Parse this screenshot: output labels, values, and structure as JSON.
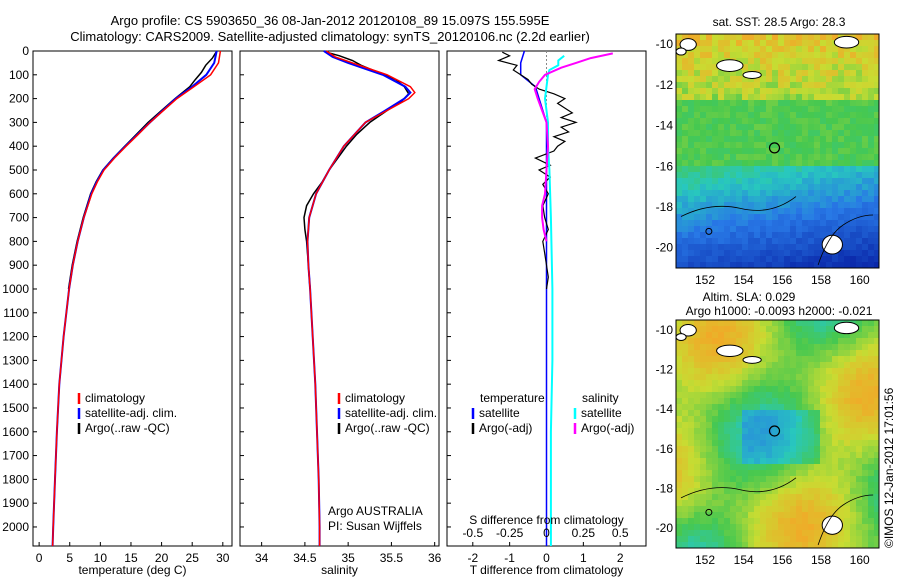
{
  "header": {
    "line1": "Argo profile: CS 5903650_36 08-Jan-2012 20120108_89 15.097S 155.595E",
    "line2": "Climatology: CARS2009. Satellite-adjusted climatology: synTS_20120106.nc (2.2d earlier)"
  },
  "colors": {
    "climatology": "#ff0000",
    "satellite": "#0000ff",
    "argo": "#000000",
    "satellite_sal": "#00ffff",
    "argo_sal": "#ff00ff"
  },
  "chart_data": [
    {
      "type": "line",
      "title": "",
      "xlabel": "temperature (deg C)",
      "ylabel": "",
      "xlim": [
        -1,
        31.5
      ],
      "ylim": [
        2080,
        0
      ],
      "xticks": [
        0,
        5,
        10,
        15,
        20,
        25,
        30
      ],
      "yticks": [
        0,
        100,
        200,
        300,
        400,
        500,
        600,
        700,
        800,
        900,
        1000,
        1100,
        1200,
        1300,
        1400,
        1500,
        1600,
        1700,
        1800,
        1900,
        2000
      ],
      "legend": [
        "climatology",
        "satellite-adj. clim.",
        "Argo(..raw -QC)"
      ],
      "series": [
        {
          "name": "climatology",
          "depth": [
            0,
            50,
            100,
            150,
            200,
            250,
            300,
            350,
            400,
            450,
            500,
            550,
            600,
            700,
            800,
            900,
            1000,
            1200,
            1400,
            1600,
            1800,
            2000,
            2080
          ],
          "values": [
            29.6,
            29.3,
            28.0,
            25.3,
            22.5,
            20.3,
            18.1,
            16.2,
            14.2,
            12.3,
            10.6,
            9.5,
            8.6,
            7.3,
            6.3,
            5.5,
            4.9,
            4.0,
            3.3,
            2.9,
            2.6,
            2.3,
            2.2
          ]
        },
        {
          "name": "satellite-adj. clim.",
          "depth": [
            0,
            50,
            100,
            150,
            200,
            250,
            300,
            350,
            400,
            450,
            500,
            550,
            600,
            700,
            800,
            900,
            1000,
            1200,
            1400,
            1600,
            1800,
            2000,
            2080
          ],
          "values": [
            29.0,
            28.6,
            27.3,
            25.0,
            22.3,
            20.2,
            18.1,
            16.1,
            14.1,
            12.2,
            10.5,
            9.4,
            8.5,
            7.3,
            6.3,
            5.5,
            4.9,
            4.0,
            3.3,
            2.9,
            2.6,
            2.3,
            2.2
          ]
        },
        {
          "name": "Argo(..raw -QC)",
          "depth": [
            5,
            30,
            60,
            90,
            120,
            150,
            200,
            250,
            300,
            350,
            400,
            450,
            500,
            550,
            600,
            650,
            700,
            800,
            900,
            1000
          ],
          "values": [
            28.9,
            28.3,
            27.2,
            26.5,
            25.5,
            24.6,
            22.2,
            20.0,
            17.8,
            15.9,
            14.0,
            12.1,
            10.4,
            9.3,
            8.4,
            7.8,
            7.2,
            6.2,
            5.4,
            4.8
          ]
        }
      ],
      "texts": []
    },
    {
      "type": "line",
      "xlabel": "salinity",
      "xlim": [
        33.75,
        36.05
      ],
      "ylim": [
        2080,
        0
      ],
      "xticks": [
        34,
        34.5,
        35,
        35.5,
        36
      ],
      "legend": [
        "climatology",
        "satellite-adj. clim.",
        "Argo(..raw -QC)"
      ],
      "series": [
        {
          "name": "climatology",
          "depth": [
            0,
            25,
            50,
            100,
            150,
            175,
            200,
            250,
            300,
            400,
            500,
            600,
            700,
            800,
            900,
            1000,
            1200,
            1400,
            1600,
            1800,
            2000,
            2080
          ],
          "values": [
            34.75,
            34.85,
            35.05,
            35.45,
            35.72,
            35.77,
            35.7,
            35.45,
            35.2,
            34.95,
            34.78,
            34.63,
            34.55,
            34.53,
            34.54,
            34.56,
            34.59,
            34.62,
            34.64,
            34.66,
            34.67,
            34.67
          ]
        },
        {
          "name": "satellite-adj. clim.",
          "depth": [
            0,
            25,
            50,
            100,
            150,
            175,
            200,
            250,
            300,
            400,
            500,
            600,
            700,
            800,
            900,
            1000,
            1200,
            1400,
            1600,
            1800,
            2000,
            2080
          ],
          "values": [
            34.72,
            34.82,
            35.0,
            35.4,
            35.66,
            35.72,
            35.65,
            35.43,
            35.2,
            34.95,
            34.78,
            34.63,
            34.55,
            34.53,
            34.54,
            34.56,
            34.59,
            34.62,
            34.64,
            34.66,
            34.67,
            34.67
          ]
        },
        {
          "name": "Argo(..raw -QC)",
          "depth": [
            5,
            20,
            40,
            60,
            90,
            120,
            150,
            180,
            210,
            250,
            300,
            350,
            400,
            450,
            500,
            550,
            600,
            650,
            700,
            750,
            800,
            900,
            1000
          ],
          "values": [
            34.75,
            34.9,
            35.05,
            35.15,
            35.35,
            35.55,
            35.65,
            35.7,
            35.62,
            35.45,
            35.25,
            35.1,
            34.98,
            34.88,
            34.78,
            34.7,
            34.6,
            34.52,
            34.49,
            34.5,
            34.52,
            34.54,
            34.56
          ]
        }
      ],
      "texts": [
        "Argo AUSTRALIA",
        "PI: Susan Wijffels"
      ]
    },
    {
      "type": "line",
      "xlabel": "T difference from climatology",
      "top_xlabel": "S difference from climatology",
      "xlim": [
        -2.7,
        2.7
      ],
      "ylim": [
        2080,
        0
      ],
      "xticks": [
        -2,
        -1,
        0,
        1,
        2
      ],
      "top_ticks": [
        -0.5,
        -0.25,
        0,
        0.25,
        0.5
      ],
      "legend_left_title": "temperature",
      "legend_right_title": "salinity",
      "legend": [
        "satellite",
        "Argo(-adj)",
        "satellite",
        "Argo(-adj)"
      ],
      "series": [
        {
          "name": "temperature satellite",
          "depth": [
            0,
            50,
            100,
            150,
            200,
            250,
            300,
            400,
            500,
            600,
            800,
            1000,
            2080
          ],
          "values": [
            -0.6,
            -0.7,
            -0.7,
            -0.3,
            -0.2,
            -0.1,
            0,
            0,
            0,
            0,
            0,
            0,
            0
          ]
        },
        {
          "name": "temperature Argo(-adj)",
          "depth": [
            5,
            20,
            40,
            60,
            80,
            100,
            120,
            140,
            160,
            180,
            200,
            220,
            240,
            260,
            280,
            300,
            320,
            340,
            360,
            380,
            400,
            420,
            450,
            480,
            500,
            530,
            560,
            600,
            650,
            700,
            750,
            800,
            850,
            900,
            950,
            1000
          ],
          "values": [
            -1.2,
            -1.0,
            -1.3,
            -0.8,
            -0.9,
            -0.7,
            -0.5,
            -0.4,
            -0.2,
            0.2,
            0.5,
            0.3,
            0.5,
            0.7,
            0.4,
            0.8,
            0.4,
            0.6,
            0.2,
            0.5,
            0.3,
            0.2,
            -0.3,
            0.1,
            -0.2,
            0.1,
            -0.1,
            0.05,
            -0.1,
            -0.05,
            0.05,
            -0.1,
            -0.05,
            0,
            0.05,
            0
          ]
        },
        {
          "name": "salinity satellite",
          "depth": [
            20,
            40,
            60,
            80,
            100,
            150,
            200,
            300,
            400,
            500,
            700,
            1000,
            1300,
            1600,
            2080
          ],
          "values": [
            0.12,
            0.08,
            0.08,
            0.02,
            0.01,
            0,
            -0.01,
            0.01,
            0.01,
            0.02,
            0.03,
            0.04,
            0.04,
            0.03,
            0.03
          ]
        },
        {
          "name": "salinity Argo(-adj)",
          "depth": [
            10,
            30,
            50,
            70,
            100,
            130,
            160,
            200,
            250,
            300,
            400,
            500,
            600,
            650,
            700,
            750,
            800
          ],
          "values": [
            0.45,
            0.3,
            0.2,
            0.1,
            -0.01,
            -0.05,
            -0.08,
            -0.06,
            -0.03,
            0,
            0.01,
            0,
            -0.01,
            -0.03,
            -0.03,
            -0.02,
            0
          ]
        }
      ],
      "texts": []
    },
    {
      "type": "heatmap",
      "title": "sat. SST: 28.5 Argo: 28.3",
      "xlim": [
        150.5,
        161
      ],
      "ylim": [
        -21,
        -9.5
      ],
      "xticks": [
        152,
        154,
        156,
        158,
        160
      ],
      "yticks": [
        -10,
        -12,
        -14,
        -16,
        -18,
        -20
      ]
    },
    {
      "type": "heatmap",
      "title": "Altim. SLA: 0.029",
      "subtitle": "Argo h1000: -0.0093 h2000: -0.021",
      "xlim": [
        150.5,
        161
      ],
      "ylim": [
        -21,
        -9.5
      ],
      "xticks": [
        152,
        154,
        156,
        158,
        160
      ],
      "yticks": [
        -10,
        -12,
        -14,
        -16,
        -18,
        -20
      ]
    }
  ],
  "profile_marker": {
    "lon": 155.595,
    "lat": -15.097
  },
  "footer": {
    "credit": "©IMOS 12-Jan-2012 17:01:56"
  }
}
